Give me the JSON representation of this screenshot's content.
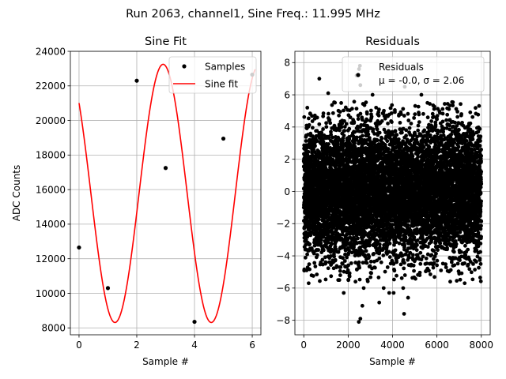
{
  "suptitle": "Run 2063, channel1, Sine Freq.: 11.995 MHz",
  "chart_data": [
    {
      "type": "scatter+line",
      "title": "Sine Fit",
      "xlabel": "Sample #",
      "ylabel": "ADC Counts",
      "xlim": [
        -0.3,
        6.3
      ],
      "ylim": [
        7600,
        24000
      ],
      "xticks": [
        0,
        2,
        4,
        6
      ],
      "yticks": [
        8000,
        10000,
        12000,
        14000,
        16000,
        18000,
        20000,
        22000,
        24000
      ],
      "grid": true,
      "legend_position": "top-right",
      "series": [
        {
          "name": "Samples",
          "kind": "scatter",
          "color": "#000000",
          "x": [
            0,
            1,
            2,
            3,
            4,
            5,
            6
          ],
          "y": [
            12650,
            10300,
            22300,
            17250,
            8350,
            18950,
            22650
          ]
        },
        {
          "name": "Sine fit",
          "kind": "line",
          "color": "#ff0000",
          "model": {
            "amplitude": 7470,
            "offset": 15780,
            "period": 3.335,
            "phase_rad": 2.366
          },
          "x_range": [
            0,
            6.1
          ]
        }
      ]
    },
    {
      "type": "scatter",
      "title": "Residuals",
      "xlabel": "Sample #",
      "ylabel": "",
      "xlim": [
        -400,
        8400
      ],
      "ylim": [
        -8.9,
        8.7
      ],
      "xticks": [
        0,
        2000,
        4000,
        6000,
        8000
      ],
      "yticks": [
        -8,
        -6,
        -4,
        -2,
        0,
        2,
        4,
        6,
        8
      ],
      "grid": true,
      "legend_position": "top-right",
      "series": [
        {
          "name": "Residuals",
          "kind": "scatter",
          "color": "#000000",
          "count": 8000,
          "x_range": [
            0,
            7999
          ],
          "mean": 0.0,
          "sigma": 2.06,
          "outliers": [
            {
              "x": 2480,
              "y": -8.1
            },
            {
              "x": 2550,
              "y": -7.9
            },
            {
              "x": 4520,
              "y": -7.6
            },
            {
              "x": 2530,
              "y": 7.8
            },
            {
              "x": 2490,
              "y": 7.6
            },
            {
              "x": 2380,
              "y": 7.2
            },
            {
              "x": 700,
              "y": 7.0
            },
            {
              "x": 2550,
              "y": 6.6
            },
            {
              "x": 4550,
              "y": 6.5
            },
            {
              "x": 1100,
              "y": 6.1
            },
            {
              "x": 3100,
              "y": 6.0
            },
            {
              "x": 5300,
              "y": 6.0
            },
            {
              "x": 1800,
              "y": -6.3
            },
            {
              "x": 3850,
              "y": -6.3
            },
            {
              "x": 4050,
              "y": -6.3
            },
            {
              "x": 4480,
              "y": -6.0
            },
            {
              "x": 3600,
              "y": -6.0
            },
            {
              "x": 2700,
              "y": -6.0
            },
            {
              "x": 220,
              "y": -5.7
            },
            {
              "x": 4560,
              "y": -5.2
            },
            {
              "x": 1550,
              "y": -5.5
            },
            {
              "x": 2330,
              "y": -5.6
            },
            {
              "x": 6600,
              "y": -5.6
            },
            {
              "x": 7250,
              "y": -5.7
            },
            {
              "x": 3400,
              "y": -6.9
            },
            {
              "x": 2640,
              "y": -7.1
            },
            {
              "x": 4700,
              "y": -6.6
            }
          ]
        }
      ],
      "legend_entries": [
        "Residuals",
        "μ = -0.0, σ = 2.06"
      ]
    }
  ]
}
